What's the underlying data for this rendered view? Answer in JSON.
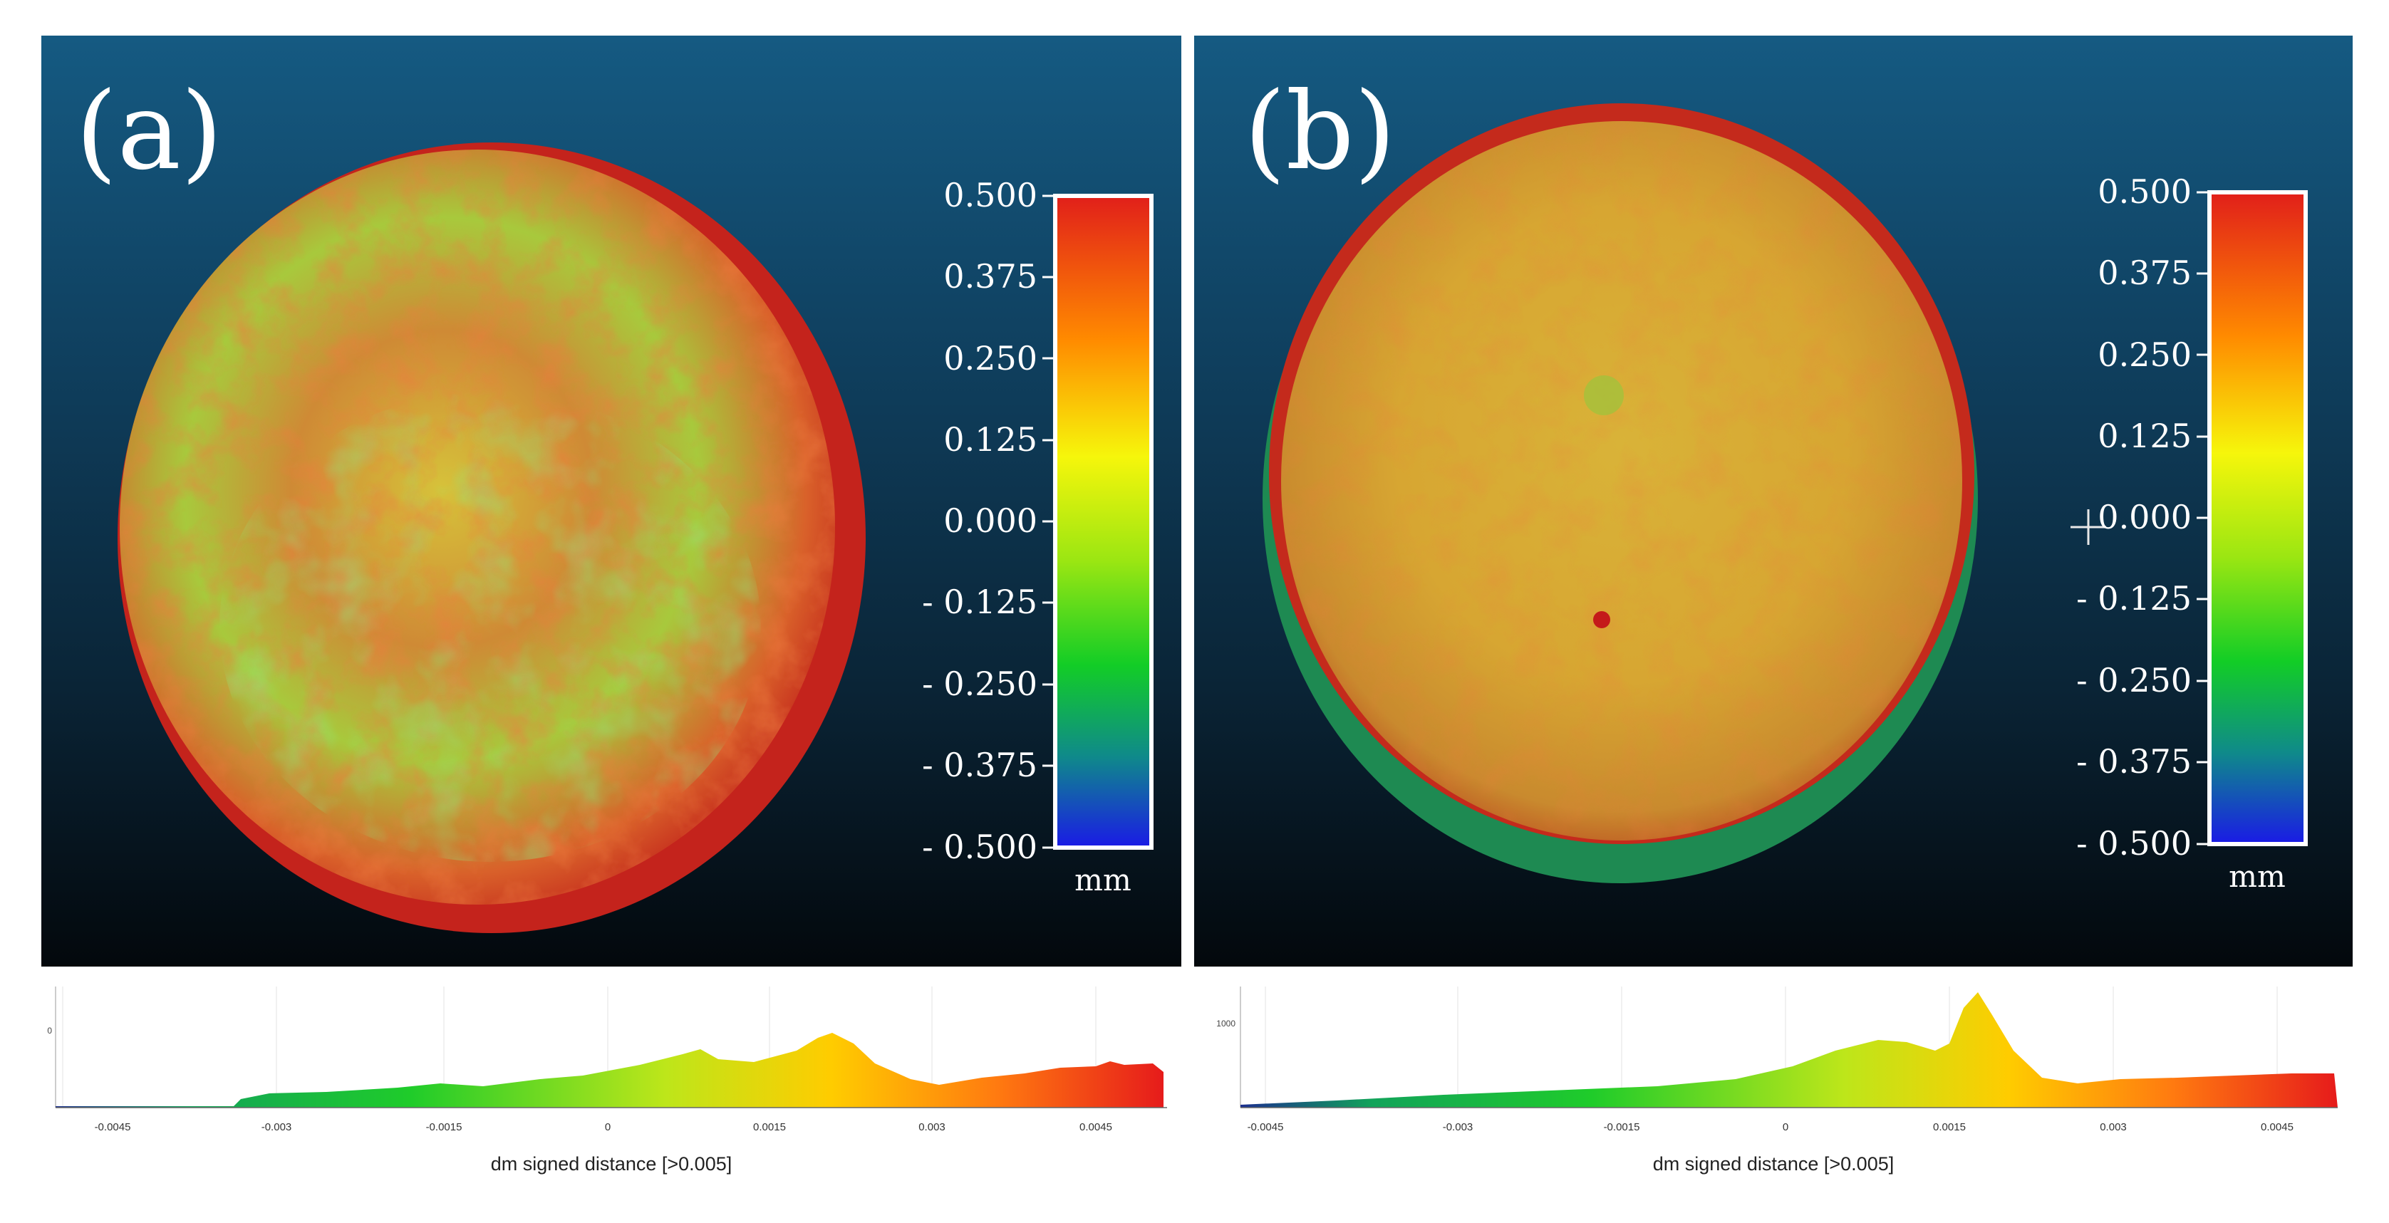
{
  "panels": [
    {
      "label": "(a)",
      "scale": {
        "ticks": [
          "0.500",
          "0.375",
          "0.250",
          "0.125",
          "0.000",
          "- 0.125",
          "- 0.250",
          "- 0.375",
          "- 0.500"
        ],
        "unit": "mm"
      },
      "histogram": {
        "x_ticks": [
          "-0.0045",
          "-0.003",
          "-0.0015",
          "0",
          "0.0015",
          "0.003",
          "0.0045"
        ],
        "y_tick": "0",
        "x_title": "dm signed distance [>0.005]"
      }
    },
    {
      "label": "(b)",
      "scale": {
        "ticks": [
          "0.500",
          "0.375",
          "0.250",
          "0.125",
          "0.000",
          "- 0.125",
          "- 0.250",
          "- 0.375",
          "- 0.500"
        ],
        "unit": "mm"
      },
      "histogram": {
        "x_ticks": [
          "-0.0045",
          "-0.003",
          "-0.0015",
          "0",
          "0.0015",
          "0.003",
          "0.0045"
        ],
        "y_tick": "1000",
        "x_title": "dm signed distance [>0.005]"
      }
    }
  ],
  "colors": {
    "scale_top": "#e8201a",
    "scale_orange": "#ff8a00",
    "scale_yellow": "#f4f40a",
    "scale_green": "#10d020",
    "scale_bottom": "#1a1ae6"
  }
}
